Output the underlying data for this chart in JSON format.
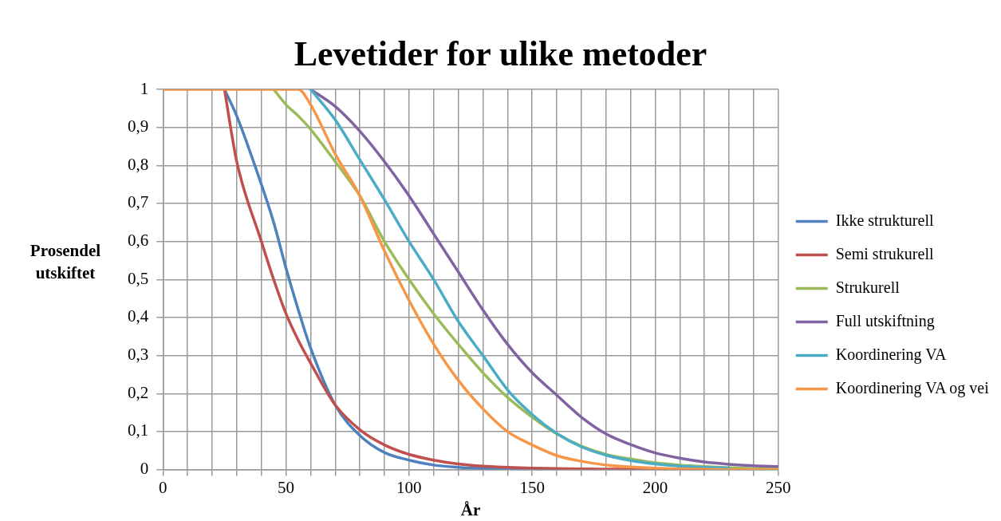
{
  "chart_data": {
    "type": "line",
    "title": "Levetider for ulike metoder",
    "xlabel": "År",
    "ylabel": "Prosendel utskiftet",
    "x": [
      0,
      10,
      20,
      25,
      30,
      40,
      45,
      50,
      55,
      60,
      70,
      80,
      90,
      100,
      110,
      120,
      130,
      140,
      150,
      160,
      170,
      180,
      190,
      200,
      210,
      220,
      230,
      240,
      250
    ],
    "series": [
      {
        "name": "Ikke strukturell",
        "color": "#4f81bd",
        "values": [
          null,
          null,
          null,
          1,
          0.93,
          0.75,
          0.65,
          0.53,
          0.42,
          0.32,
          0.17,
          0.09,
          0.045,
          0.025,
          0.012,
          0.006,
          0.003,
          0.002,
          0.001,
          0,
          null,
          null,
          null,
          null,
          null,
          null,
          null,
          null,
          null
        ]
      },
      {
        "name": "Semi strukurell",
        "color": "#c0504d",
        "values": [
          null,
          null,
          null,
          1,
          0.81,
          0.6,
          0.5,
          0.41,
          0.34,
          0.28,
          0.17,
          0.105,
          0.065,
          0.04,
          0.025,
          0.015,
          0.009,
          0.006,
          0.004,
          0.003,
          0.002,
          0.001,
          0.001,
          0.001,
          0,
          0,
          null,
          null,
          null
        ]
      },
      {
        "name": "Strukurell",
        "color": "#9bbb59",
        "values": [
          null,
          null,
          null,
          null,
          null,
          null,
          1,
          0.96,
          0.93,
          0.895,
          0.81,
          0.72,
          0.6,
          0.5,
          0.41,
          0.33,
          0.255,
          0.19,
          0.138,
          0.094,
          0.062,
          0.04,
          0.028,
          0.018,
          0.012,
          0.008,
          0.005,
          0.003,
          0.002
        ]
      },
      {
        "name": "Full utskiftning",
        "color": "#8064a2",
        "values": [
          null,
          null,
          null,
          null,
          null,
          null,
          null,
          null,
          null,
          1,
          0.955,
          0.89,
          0.81,
          0.72,
          0.62,
          0.52,
          0.42,
          0.33,
          0.255,
          0.196,
          0.138,
          0.094,
          0.066,
          0.044,
          0.03,
          0.02,
          0.014,
          0.01,
          0.008
        ]
      },
      {
        "name": "Koordinering VA",
        "color": "#4bacc6",
        "values": [
          null,
          null,
          null,
          null,
          null,
          null,
          null,
          null,
          null,
          1,
          0.92,
          0.815,
          0.71,
          0.6,
          0.5,
          0.39,
          0.3,
          0.21,
          0.145,
          0.095,
          0.06,
          0.038,
          0.024,
          0.015,
          0.009,
          0.006,
          0.004,
          null,
          null
        ]
      },
      {
        "name": "Koordinering VA og vei",
        "color": "#f79646",
        "values": [
          1,
          1,
          1,
          1,
          1,
          1,
          1,
          1,
          1,
          0.96,
          0.83,
          0.72,
          0.575,
          0.445,
          0.33,
          0.235,
          0.16,
          0.1,
          0.065,
          0.037,
          0.022,
          0.012,
          0.007,
          0.004,
          0.002,
          0.001,
          0,
          0,
          0
        ]
      }
    ],
    "xlim": [
      0,
      250
    ],
    "xticks": [
      0,
      {
        "value": 10,
        "label": null
      },
      {
        "value": 20,
        "label": null
      },
      {
        "value": 30,
        "label": null
      },
      {
        "value": 40,
        "label": null
      },
      50,
      {
        "value": 60,
        "label": null
      },
      {
        "value": 70,
        "label": null
      },
      {
        "value": 80,
        "label": null
      },
      {
        "value": 90,
        "label": null
      },
      100,
      {
        "value": 110,
        "label": null
      },
      {
        "value": 120,
        "label": null
      },
      {
        "value": 130,
        "label": null
      },
      {
        "value": 140,
        "label": null
      },
      150,
      {
        "value": 160,
        "label": null
      },
      {
        "value": 170,
        "label": null
      },
      {
        "value": 180,
        "label": null
      },
      {
        "value": 190,
        "label": null
      },
      200,
      {
        "value": 210,
        "label": null
      },
      {
        "value": 220,
        "label": null
      },
      {
        "value": 230,
        "label": null
      },
      {
        "value": 240,
        "label": null
      },
      250
    ],
    "ylim": [
      0,
      1
    ],
    "yticks": [
      0,
      {
        "value": 0.1,
        "label": "0,1"
      },
      {
        "value": 0.2,
        "label": "0,2"
      },
      {
        "value": 0.3,
        "label": "0,3"
      },
      {
        "value": 0.4,
        "label": "0,4"
      },
      {
        "value": 0.5,
        "label": "0,5"
      },
      {
        "value": 0.6,
        "label": "0,6"
      },
      {
        "value": 0.7,
        "label": "0,7"
      },
      {
        "value": 0.8,
        "label": "0,8"
      },
      {
        "value": 0.9,
        "label": "0,9"
      },
      1
    ],
    "grid": true,
    "legend": "right",
    "marker": "none",
    "line_style": "solid"
  }
}
